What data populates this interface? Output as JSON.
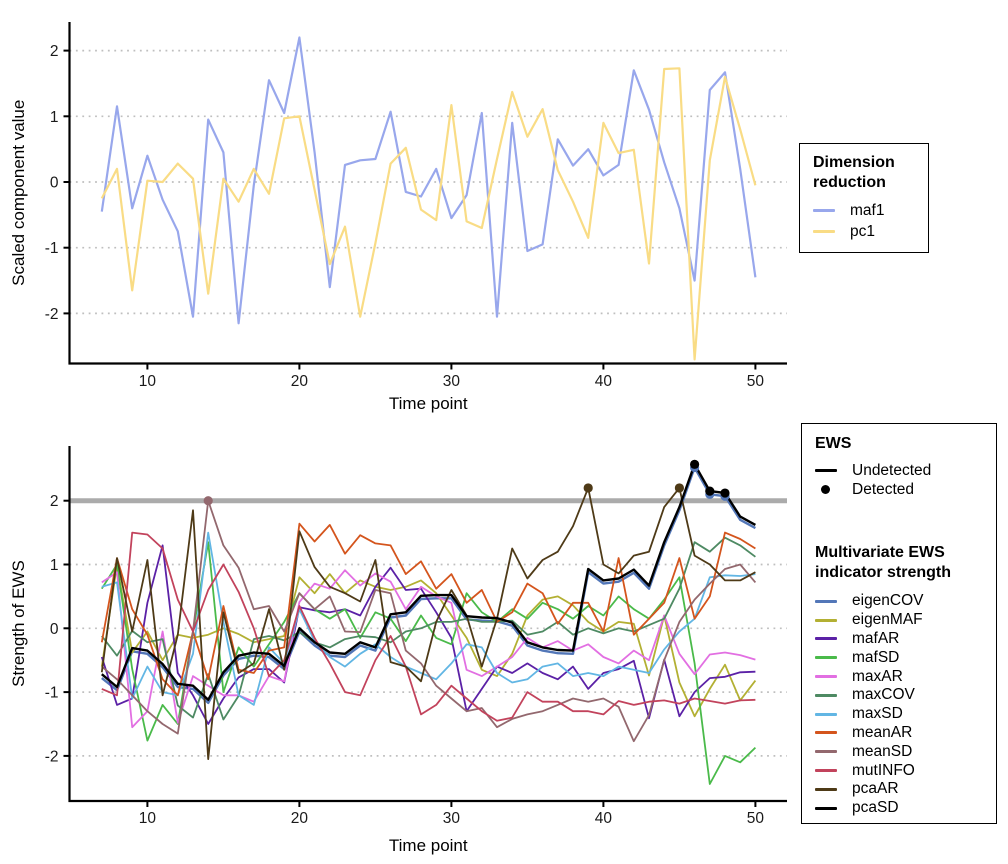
{
  "chart_data": [
    {
      "id": "dimension-reduction-chart",
      "type": "line",
      "title": "",
      "xlabel": "Time point",
      "ylabel": "Scaled component value",
      "xticks": [
        10,
        20,
        30,
        40,
        50
      ],
      "yticks": [
        2,
        1,
        0,
        -1,
        -2
      ],
      "xlim": [
        5.8,
        52
      ],
      "ylim": [
        -2.75,
        2.45
      ],
      "grid": "dotted-horizontal",
      "legend_title": "Dimension reduction",
      "legend_position": "right",
      "x": [
        7,
        8,
        9,
        10,
        11,
        12,
        13,
        14,
        15,
        16,
        17,
        18,
        19,
        20,
        21,
        22,
        23,
        24,
        25,
        26,
        27,
        28,
        29,
        30,
        31,
        32,
        33,
        34,
        35,
        36,
        37,
        38,
        39,
        40,
        41,
        42,
        43,
        44,
        45,
        46,
        47,
        48,
        49,
        50
      ],
      "series": [
        {
          "name": "maf1",
          "color": "#98A7EC",
          "values": [
            -0.45,
            1.15,
            -0.4,
            0.4,
            -0.27,
            -0.75,
            -2.05,
            0.95,
            0.45,
            -2.15,
            -0.05,
            1.55,
            1.05,
            2.2,
            0.45,
            -1.6,
            0.26,
            0.33,
            0.35,
            1.07,
            -0.15,
            -0.22,
            0.2,
            -0.55,
            -0.2,
            1.05,
            -2.05,
            0.9,
            -1.05,
            -0.95,
            0.65,
            0.25,
            0.5,
            0.1,
            0.26,
            1.7,
            1.1,
            0.3,
            -0.4,
            -1.5,
            1.4,
            1.67,
            0.2,
            -1.45
          ]
        },
        {
          "name": "pc1",
          "color": "#F9DC85",
          "values": [
            -0.25,
            0.2,
            -1.65,
            0.02,
            0.0,
            0.28,
            0.05,
            -1.7,
            0.05,
            -0.3,
            0.2,
            -0.18,
            0.97,
            1.0,
            -0.12,
            -1.25,
            -0.68,
            -2.05,
            -0.93,
            0.28,
            0.52,
            -0.42,
            -0.58,
            1.17,
            -0.6,
            -0.7,
            0.35,
            1.37,
            0.69,
            1.11,
            0.18,
            -0.3,
            -0.85,
            0.9,
            0.44,
            0.49,
            -1.24,
            1.72,
            1.73,
            -2.7,
            0.33,
            1.6,
            0.8,
            -0.05
          ]
        }
      ]
    },
    {
      "id": "ews-strength-chart",
      "type": "line",
      "title": "",
      "xlabel": "Time point",
      "ylabel": "Strength of EWS",
      "xticks": [
        10,
        20,
        30,
        40,
        50
      ],
      "yticks": [
        2,
        1,
        0,
        -1,
        -2
      ],
      "xlim": [
        5.8,
        52
      ],
      "ylim": [
        -2.7,
        2.85
      ],
      "grid": "dotted-horizontal",
      "threshold": {
        "y": 2,
        "color": "#ABABAB"
      },
      "ews_legend": {
        "title": "EWS",
        "undetected_label": "Undetected",
        "detected_label": "Detected"
      },
      "legend_title": "Multivariate EWS indicator strength",
      "legend_position": "right",
      "x": [
        7,
        8,
        9,
        10,
        11,
        12,
        13,
        14,
        15,
        16,
        17,
        18,
        19,
        20,
        21,
        22,
        23,
        24,
        25,
        26,
        27,
        28,
        29,
        30,
        31,
        32,
        33,
        34,
        35,
        36,
        37,
        38,
        39,
        40,
        41,
        42,
        43,
        44,
        45,
        46,
        47,
        48,
        49,
        50
      ],
      "series": [
        {
          "name": "eigenCOV",
          "color": "#5377B8",
          "values": [
            -0.78,
            -0.97,
            -0.36,
            -0.4,
            -0.61,
            -0.92,
            -0.95,
            -1.17,
            -0.74,
            -0.48,
            -0.43,
            -0.45,
            -0.64,
            -0.05,
            -0.27,
            -0.43,
            -0.45,
            -0.27,
            -0.35,
            0.17,
            0.2,
            0.46,
            0.47,
            0.47,
            0.14,
            0.12,
            0.11,
            0.04,
            -0.27,
            -0.35,
            -0.39,
            -0.4,
            0.88,
            0.7,
            0.73,
            0.87,
            0.62,
            1.3,
            1.85,
            2.52,
            2.1,
            2.07,
            1.7,
            1.57
          ],
          "detected": [
            {
              "x": 46,
              "y": 2.52
            },
            {
              "x": 47,
              "y": 2.1
            },
            {
              "x": 48,
              "y": 2.07
            }
          ]
        },
        {
          "name": "eigenMAF",
          "color": "#B3B033",
          "values": [
            -0.6,
            1.0,
            -0.38,
            -0.05,
            -0.5,
            -0.1,
            -0.15,
            -0.1,
            0.0,
            -0.09,
            -0.22,
            -0.17,
            -0.12,
            0.8,
            0.55,
            0.85,
            0.55,
            0.75,
            0.65,
            0.6,
            0.65,
            0.75,
            0.55,
            0.2,
            -0.15,
            -0.65,
            -0.75,
            -0.4,
            0.2,
            0.45,
            0.5,
            0.36,
            0.1,
            -0.05,
            0.1,
            0.07,
            -0.74,
            0.2,
            -0.85,
            -1.38,
            -0.95,
            -0.57,
            -1.13,
            -0.82
          ]
        },
        {
          "name": "mafAR",
          "color": "#5B21A6",
          "values": [
            -0.45,
            -1.2,
            -1.1,
            0.4,
            1.3,
            -0.7,
            -1.05,
            -1.5,
            -1.1,
            -0.77,
            -0.64,
            -0.64,
            -0.85,
            0.33,
            0.28,
            0.25,
            0.3,
            0.2,
            0.65,
            0.95,
            0.6,
            0.62,
            0.25,
            -0.15,
            -1.3,
            -0.95,
            -0.6,
            -0.7,
            -0.55,
            -0.7,
            -0.8,
            -0.6,
            -0.95,
            -0.7,
            -0.64,
            -0.51,
            -1.41,
            -0.49,
            -1.38,
            -1.0,
            -0.78,
            -0.76,
            -0.69,
            -0.68
          ]
        },
        {
          "name": "mafSD",
          "color": "#4ABA4A",
          "values": [
            0.62,
            1.0,
            -0.64,
            -1.76,
            -1.2,
            -1.5,
            -0.05,
            1.35,
            -1.0,
            -0.3,
            -0.6,
            -0.25,
            0.1,
            0.55,
            0.3,
            0.15,
            0.3,
            -0.15,
            0.25,
            0.15,
            -0.2,
            0.2,
            -0.15,
            -0.25,
            0.55,
            0.25,
            0.1,
            0.3,
            0.15,
            0.4,
            0.3,
            0.15,
            0.35,
            0.2,
            0.5,
            0.3,
            0.15,
            0.45,
            0.8,
            -0.55,
            -2.44,
            -2.0,
            -2.1,
            -1.87
          ]
        },
        {
          "name": "maxAR",
          "color": "#E26FE2",
          "values": [
            0.72,
            0.88,
            -1.55,
            -1.3,
            -0.05,
            -1.48,
            -0.75,
            -0.9,
            -1.05,
            -1.05,
            -1.15,
            -0.75,
            -0.83,
            0.41,
            0.7,
            0.62,
            0.91,
            0.67,
            0.86,
            0.73,
            0.3,
            0.65,
            0.5,
            0.4,
            -0.65,
            -0.75,
            -0.6,
            -0.45,
            -0.15,
            -0.3,
            -0.2,
            -0.35,
            -0.25,
            -0.45,
            -0.55,
            -0.35,
            -0.5,
            0.2,
            -0.4,
            -0.72,
            -0.41,
            -0.38,
            -0.42,
            -0.49
          ]
        },
        {
          "name": "maxCOV",
          "color": "#4E8A63",
          "values": [
            -0.12,
            -0.43,
            -0.04,
            -0.22,
            -0.17,
            -1.21,
            -1.4,
            -0.72,
            -1.43,
            -1.06,
            -0.17,
            -0.12,
            -0.19,
            -0.06,
            -0.22,
            -0.3,
            -0.17,
            -0.12,
            -0.14,
            -0.22,
            -0.05,
            0.0,
            0.1,
            0.1,
            0.15,
            0.1,
            0.1,
            0.12,
            -0.1,
            -0.05,
            0.1,
            -0.1,
            0.0,
            -0.08,
            0.0,
            -0.05,
            0.05,
            0.15,
            0.62,
            1.35,
            1.2,
            1.42,
            1.3,
            1.12
          ]
        },
        {
          "name": "maxSD",
          "color": "#62B6E4",
          "values": [
            0.65,
            0.72,
            -1.1,
            -0.6,
            -1.0,
            -1.05,
            -0.4,
            1.5,
            0.1,
            -1.05,
            -1.2,
            -0.3,
            -0.55,
            0.3,
            -0.2,
            -0.45,
            -0.6,
            -0.4,
            -0.25,
            -0.45,
            -0.6,
            -0.7,
            -0.8,
            -0.55,
            -0.25,
            -0.3,
            -0.7,
            -0.85,
            -0.8,
            -0.6,
            -0.55,
            -0.75,
            -0.7,
            -0.75,
            -0.6,
            -0.65,
            -0.7,
            -0.33,
            -0.05,
            0.15,
            0.8,
            0.83,
            0.82,
            0.85
          ]
        },
        {
          "name": "meanAR",
          "color": "#D4551D",
          "values": [
            -0.22,
            1.1,
            0.3,
            -0.1,
            -0.8,
            -1.05,
            -0.05,
            -0.8,
            0.35,
            -0.65,
            -0.7,
            -0.35,
            -0.3,
            1.64,
            1.36,
            1.62,
            1.17,
            1.46,
            1.33,
            1.3,
            0.85,
            1.05,
            0.62,
            0.85,
            0.4,
            0.6,
            0.1,
            0.25,
            0.7,
            0.55,
            0.07,
            0.4,
            0.4,
            -0.05,
            1.1,
            -0.1,
            0.15,
            0.4,
            1.1,
            0.15,
            0.5,
            1.5,
            1.4,
            1.25
          ]
        },
        {
          "name": "meanSD",
          "color": "#93686E",
          "values": [
            -0.6,
            -0.8,
            -1.05,
            -1.3,
            -1.5,
            -1.65,
            -0.05,
            2.0,
            1.3,
            0.95,
            0.3,
            0.35,
            -0.05,
            0.55,
            0.3,
            0.5,
            -0.05,
            -0.06,
            0.6,
            0.55,
            -0.35,
            -0.55,
            -0.9,
            -1.1,
            -1.3,
            -1.25,
            -1.55,
            -1.42,
            -1.35,
            -1.3,
            -1.2,
            -1.1,
            -1.15,
            -1.1,
            -1.23,
            -1.77,
            -1.36,
            -0.5,
            0.1,
            0.45,
            0.7,
            0.93,
            1.0,
            0.72
          ],
          "detected": [
            {
              "x": 14,
              "y": 2.0
            }
          ]
        },
        {
          "name": "mutINFO",
          "color": "#C2435C",
          "values": [
            -0.95,
            -1.05,
            1.5,
            1.47,
            1.25,
            0.45,
            -0.05,
            0.6,
            1.0,
            0.57,
            0.0,
            -0.75,
            -0.5,
            0.35,
            -0.15,
            -0.55,
            -1.0,
            -1.05,
            -0.5,
            -0.12,
            -0.6,
            -1.35,
            -1.2,
            -0.9,
            -1.1,
            -1.3,
            -1.45,
            -1.4,
            -1.0,
            -1.15,
            -1.15,
            -1.3,
            -1.3,
            -1.35,
            -1.14,
            -1.2,
            -1.15,
            -1.13,
            -1.18,
            -1.1,
            -1.14,
            -1.18,
            -1.13,
            -1.12
          ]
        },
        {
          "name": "pcaAR",
          "color": "#4E3A17",
          "values": [
            -0.69,
            1.1,
            -0.05,
            1.07,
            -1.05,
            -0.1,
            1.85,
            -2.05,
            0.25,
            -0.7,
            -0.55,
            0.3,
            -0.65,
            1.52,
            0.96,
            0.65,
            0.55,
            0.42,
            1.07,
            -0.53,
            -0.6,
            -0.83,
            0.1,
            0.6,
            0.2,
            -0.6,
            0.15,
            1.25,
            0.78,
            1.07,
            1.2,
            1.6,
            2.2,
            1.0,
            0.86,
            1.14,
            1.2,
            1.9,
            2.2,
            1.14,
            1.0,
            0.75,
            0.75,
            0.88
          ],
          "detected": [
            {
              "x": 39,
              "y": 2.2
            },
            {
              "x": 45,
              "y": 2.2
            }
          ]
        },
        {
          "name": "pcaSD",
          "color": "#000000",
          "values": [
            -0.72,
            -0.92,
            -0.31,
            -0.35,
            -0.56,
            -0.87,
            -0.9,
            -1.12,
            -0.69,
            -0.43,
            -0.38,
            -0.4,
            -0.59,
            0.0,
            -0.22,
            -0.38,
            -0.4,
            -0.22,
            -0.3,
            0.22,
            0.25,
            0.51,
            0.52,
            0.52,
            0.19,
            0.17,
            0.16,
            0.09,
            -0.22,
            -0.3,
            -0.34,
            -0.35,
            0.93,
            0.75,
            0.78,
            0.92,
            0.67,
            1.35,
            1.9,
            2.57,
            2.15,
            2.12,
            1.75,
            1.62
          ],
          "detected": [
            {
              "x": 46,
              "y": 2.57
            },
            {
              "x": 47,
              "y": 2.15
            },
            {
              "x": 48,
              "y": 2.12
            }
          ]
        }
      ]
    }
  ],
  "style": {
    "grid_color": "#BFBFBF",
    "axis_color": "#000000",
    "tick_label_color": "#1a1a1a",
    "threshold_color": "#ABABAB",
    "background": "#ffffff"
  }
}
